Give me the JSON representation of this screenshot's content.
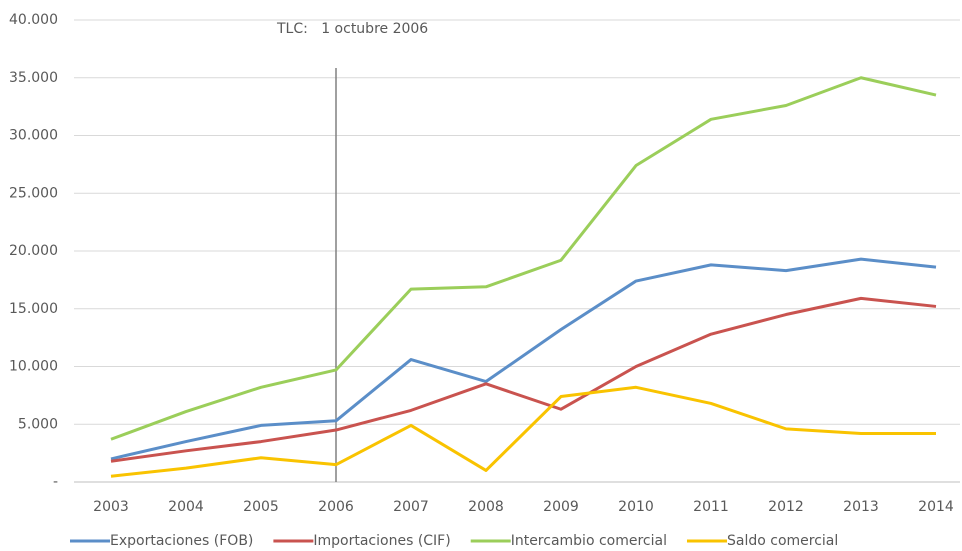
{
  "chart_data": {
    "type": "line",
    "categories": [
      "2003",
      "2004",
      "2005",
      "2006",
      "2007",
      "2008",
      "2009",
      "2010",
      "2011",
      "2012",
      "2013",
      "2014"
    ],
    "series": [
      {
        "name": "Exportaciones (FOB)",
        "color": "#5b8ec8",
        "values": [
          2000,
          3500,
          4900,
          5300,
          10600,
          8700,
          13200,
          17400,
          18800,
          18300,
          19300,
          18600
        ]
      },
      {
        "name": "Importaciones (CIF)",
        "color": "#c9534f",
        "values": [
          1800,
          2700,
          3500,
          4500,
          6200,
          8500,
          6300,
          10000,
          12800,
          14500,
          15900,
          15200
        ]
      },
      {
        "name": "Intercambio comercial",
        "color": "#9bce5a",
        "values": [
          3700,
          6100,
          8200,
          9700,
          16700,
          16900,
          19200,
          27400,
          31400,
          32600,
          35000,
          33500
        ]
      },
      {
        "name": "Saldo comercial",
        "color": "#f9c300",
        "values": [
          500,
          1200,
          2100,
          1500,
          4900,
          1000,
          7400,
          8200,
          6800,
          4600,
          4200,
          4200
        ]
      }
    ],
    "ylim": [
      0,
      40000
    ],
    "yticks": [
      {
        "value": 0,
        "label": "-"
      },
      {
        "value": 5000,
        "label": "5.000"
      },
      {
        "value": 10000,
        "label": "10.000"
      },
      {
        "value": 15000,
        "label": "15.000"
      },
      {
        "value": 20000,
        "label": "20.000"
      },
      {
        "value": 25000,
        "label": "25.000"
      },
      {
        "value": 30000,
        "label": "30.000"
      },
      {
        "value": 35000,
        "label": "35.000"
      },
      {
        "value": 40000,
        "label": "40.000"
      }
    ],
    "grid": true,
    "legend": "bottom",
    "annotation": {
      "text": "TLC:   1 octubre 2006",
      "category": "2006"
    }
  }
}
